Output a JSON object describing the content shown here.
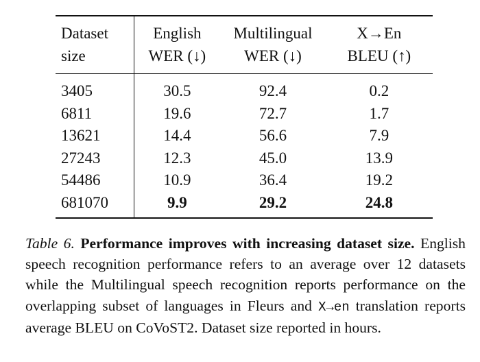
{
  "table": {
    "headers": [
      [
        "Dataset",
        "size"
      ],
      [
        "English",
        "WER (↓)"
      ],
      [
        "Multilingual",
        "WER (↓)"
      ],
      [
        "X→En",
        "BLEU (↑)"
      ]
    ],
    "rows": [
      [
        "3405",
        "30.5",
        "92.4",
        "0.2"
      ],
      [
        "6811",
        "19.6",
        "72.7",
        "1.7"
      ],
      [
        "13621",
        "14.4",
        "56.6",
        "7.9"
      ],
      [
        "27243",
        "12.3",
        "45.0",
        "13.9"
      ],
      [
        "54486",
        "10.9",
        "36.4",
        "19.2"
      ],
      [
        "681070",
        "9.9",
        "29.2",
        "24.8"
      ]
    ]
  },
  "caption": {
    "label": "Table 6.",
    "title": "Performance improves with increasing dataset size.",
    "text_part1": "English speech recognition performance refers to an average over 12 datasets while the Multilingual speech recognition reports performance on the overlapping subset of languages in Fleurs and ",
    "mono_term": "X→en",
    "text_part2": " translation reports average BLEU on CoVoST2. Dataset size reported in hours."
  }
}
